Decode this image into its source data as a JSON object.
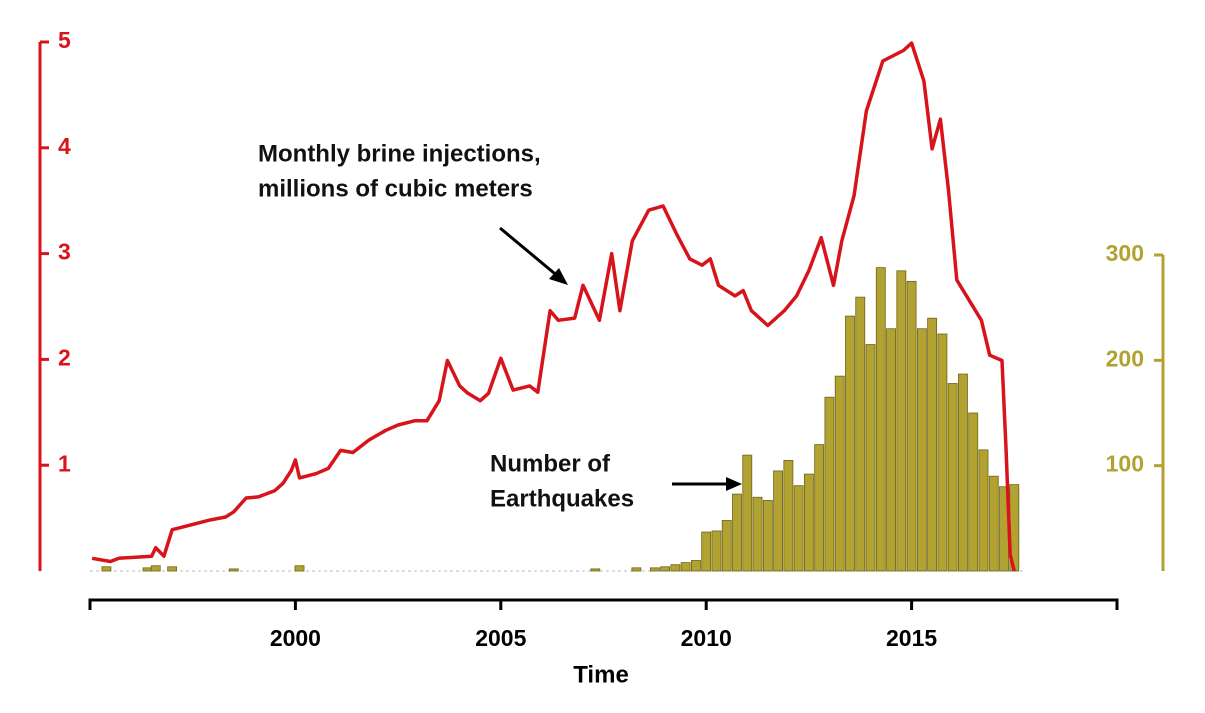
{
  "chart_data": {
    "type": "combo",
    "x_label": "Time",
    "annotations": [
      {
        "lines": [
          "Monthly brine injections,",
          "millions of cubic meters"
        ]
      },
      {
        "lines": [
          "Number of",
          "Earthquakes"
        ]
      }
    ],
    "xlim": [
      1995,
      2020
    ],
    "xticks": [
      2000,
      2005,
      2010,
      2015
    ],
    "ylim": [
      0,
      5
    ],
    "yticks": [
      1,
      2,
      3,
      4,
      5
    ],
    "y2lim": [
      0,
      300
    ],
    "y2ticks": [
      100,
      200,
      300
    ],
    "series": [
      {
        "type": "line",
        "color": "#d7141c",
        "x": [
          1995.05,
          1995.5,
          1995.7,
          1996.1,
          1996.5,
          1996.6,
          1996.8,
          1997.0,
          1997.3,
          1997.5,
          1997.9,
          1998.3,
          1998.5,
          1998.8,
          1999.1,
          1999.5,
          1999.7,
          1999.9,
          2000.0,
          2000.1,
          2000.5,
          2000.8,
          2001.1,
          2001.4,
          2001.8,
          2002.2,
          2002.5,
          2002.9,
          2003.2,
          2003.5,
          2003.7,
          2004.0,
          2004.2,
          2004.5,
          2004.7,
          2005.0,
          2005.3,
          2005.7,
          2005.9,
          2006.2,
          2006.4,
          2006.8,
          2007.0,
          2007.4,
          2007.7,
          2007.9,
          2008.2,
          2008.6,
          2008.95,
          2009.3,
          2009.6,
          2009.9,
          2010.1,
          2010.3,
          2010.7,
          2010.9,
          2011.1,
          2011.5,
          2011.9,
          2012.2,
          2012.5,
          2012.8,
          2013.1,
          2013.3,
          2013.6,
          2013.9,
          2014.3,
          2014.8,
          2015.0,
          2015.3,
          2015.5,
          2015.7,
          2015.9,
          2016.1,
          2016.4,
          2016.7,
          2016.9,
          2017.2,
          2017.3,
          2017.4,
          2017.5
        ],
        "values": [
          0.12,
          0.09,
          0.12,
          0.13,
          0.14,
          0.22,
          0.14,
          0.39,
          0.42,
          0.44,
          0.48,
          0.51,
          0.56,
          0.69,
          0.7,
          0.76,
          0.83,
          0.95,
          1.05,
          0.88,
          0.92,
          0.97,
          1.14,
          1.12,
          1.24,
          1.33,
          1.38,
          1.42,
          1.42,
          1.61,
          1.99,
          1.75,
          1.68,
          1.61,
          1.68,
          2.01,
          1.71,
          1.75,
          1.69,
          2.46,
          2.37,
          2.39,
          2.7,
          2.37,
          3.0,
          2.46,
          3.12,
          3.41,
          3.45,
          3.17,
          2.95,
          2.89,
          2.95,
          2.7,
          2.6,
          2.65,
          2.46,
          2.32,
          2.46,
          2.6,
          2.84,
          3.15,
          2.7,
          3.12,
          3.55,
          4.35,
          4.82,
          4.92,
          4.99,
          4.63,
          3.99,
          4.27,
          3.59,
          2.75,
          2.56,
          2.37,
          2.04,
          1.99,
          1.14,
          0.15,
          0.0
        ]
      },
      {
        "type": "bar",
        "axis": "y2",
        "color": "#b1a232",
        "x": [
          1995.4,
          1996.4,
          1996.6,
          1997.0,
          1998.5,
          2000.1,
          2007.3,
          2008.3,
          2008.75,
          2009.0,
          2009.25,
          2009.5,
          2009.75,
          2010.0,
          2010.25,
          2010.5,
          2010.75,
          2011.0,
          2011.25,
          2011.5,
          2011.75,
          2012.0,
          2012.25,
          2012.5,
          2012.75,
          2013.0,
          2013.25,
          2013.5,
          2013.75,
          2014.0,
          2014.25,
          2014.5,
          2014.75,
          2015.0,
          2015.25,
          2015.5,
          2015.75,
          2016.0,
          2016.25,
          2016.5,
          2016.75,
          2017.0,
          2017.25,
          2017.5
        ],
        "values": [
          4,
          3,
          5,
          4,
          2,
          5,
          2,
          3,
          3,
          4,
          6,
          8,
          10,
          37,
          38,
          48,
          73,
          110,
          70,
          67,
          95,
          105,
          81,
          92,
          120,
          165,
          185,
          242,
          260,
          215,
          288,
          230,
          285,
          275,
          230,
          240,
          225,
          178,
          187,
          150,
          115,
          90,
          80,
          82
        ]
      }
    ]
  }
}
